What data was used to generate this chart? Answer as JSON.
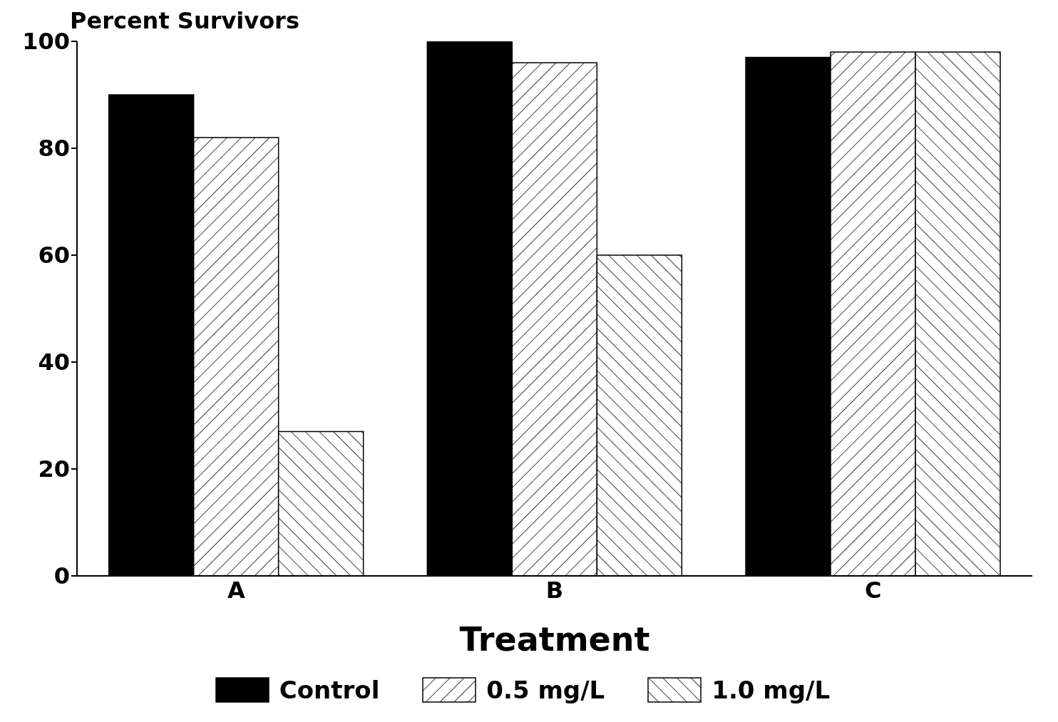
{
  "chart_data": {
    "type": "bar",
    "xlabel": "Treatment",
    "ylabel": "Percent Survivors",
    "categories": [
      "A",
      "B",
      "C"
    ],
    "series": [
      {
        "name": "Control",
        "color": "#000000",
        "values": [
          90,
          100,
          97
        ]
      },
      {
        "name": "0.5 mg/L",
        "color": "#000000",
        "values": [
          82,
          96,
          98
        ]
      },
      {
        "name": "1.0 mg/L",
        "color": "#000000",
        "values": [
          27,
          60,
          98
        ]
      }
    ],
    "ylim": [
      0,
      100
    ],
    "yticks": [
      0,
      20,
      40,
      60,
      80,
      100
    ],
    "legend": "bottom"
  }
}
